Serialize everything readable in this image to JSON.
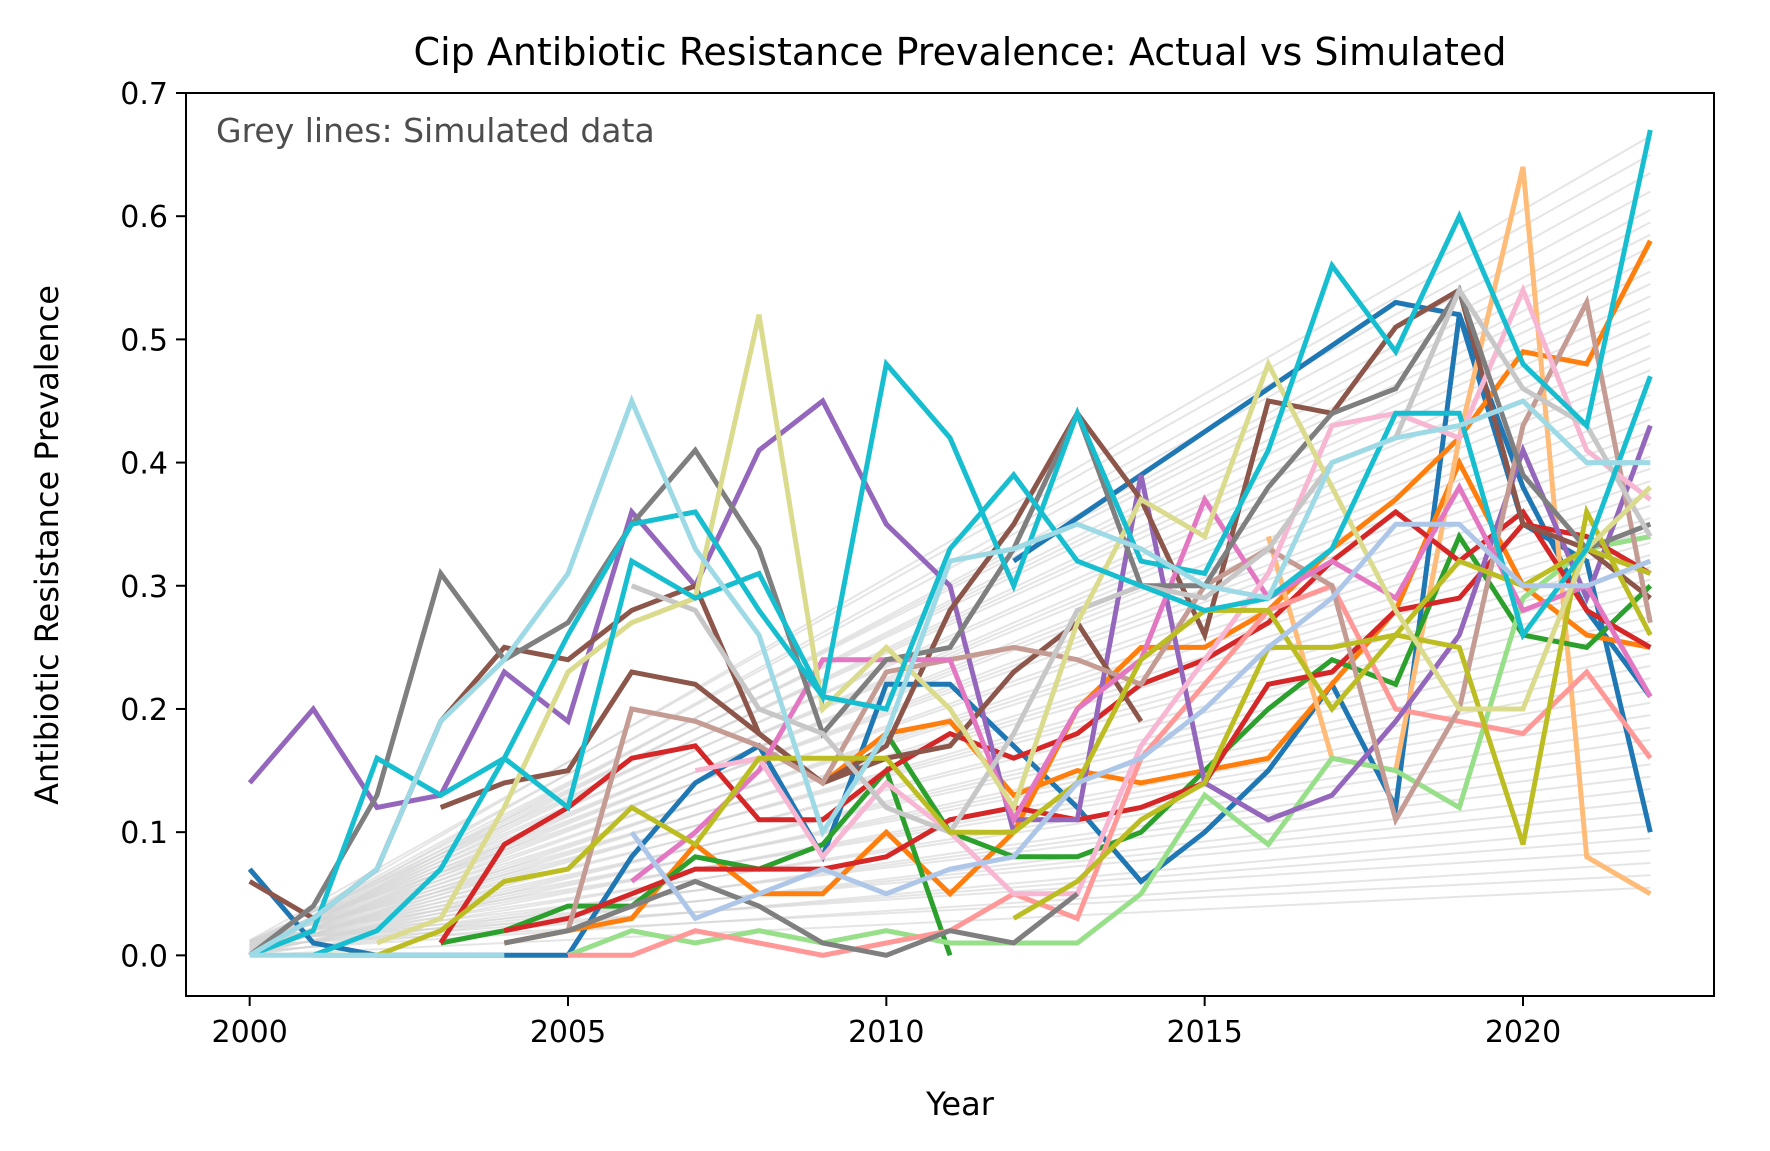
{
  "chart_data": {
    "type": "line",
    "title": "Cip Antibiotic Resistance Prevalence: Actual vs Simulated",
    "xlabel": "Year",
    "ylabel": "Antibiotic Resistance Prevalence",
    "annotation": "Grey lines: Simulated data",
    "xlim": [
      1999,
      2023
    ],
    "ylim": [
      -0.033,
      0.7
    ],
    "xticks": [
      2000,
      2005,
      2010,
      2015,
      2020
    ],
    "yticks": [
      0.0,
      0.1,
      0.2,
      0.3,
      0.4,
      0.5,
      0.6,
      0.7
    ],
    "grid": false,
    "simulated": {
      "color": "#d3d3d3",
      "x_start": 2000,
      "x_end": 2022,
      "start_range": [
        0.0,
        0.012
      ],
      "end_values": [
        0.055,
        0.065,
        0.075,
        0.085,
        0.095,
        0.105,
        0.115,
        0.125,
        0.135,
        0.145,
        0.155,
        0.165,
        0.175,
        0.185,
        0.195,
        0.205,
        0.215,
        0.225,
        0.235,
        0.245,
        0.255,
        0.265,
        0.275,
        0.285,
        0.295,
        0.305,
        0.315,
        0.325,
        0.335,
        0.345,
        0.355,
        0.365,
        0.375,
        0.385,
        0.395,
        0.405,
        0.415,
        0.425,
        0.435,
        0.445,
        0.455,
        0.465,
        0.475,
        0.485,
        0.495,
        0.505,
        0.515,
        0.525,
        0.535,
        0.545,
        0.555,
        0.565,
        0.575,
        0.585,
        0.595,
        0.605,
        0.62,
        0.635,
        0.65,
        0.665
      ]
    },
    "series": [
      {
        "color": "#1f77b4",
        "x": [
          2000,
          2001,
          2002,
          2003,
          2004,
          2005,
          2006,
          2007,
          2008,
          2009,
          2010,
          2011,
          2012,
          2013,
          2014,
          2015,
          2016,
          2017,
          2018,
          2019,
          2020,
          2021,
          2022
        ],
        "y": [
          0.07,
          0.01,
          0.0,
          0.0,
          0.0,
          0.0,
          0.08,
          0.14,
          0.17,
          0.08,
          0.22,
          0.22,
          0.17,
          0.12,
          0.06,
          0.1,
          0.15,
          0.22,
          0.12,
          0.52,
          0.35,
          0.32,
          0.1
        ]
      },
      {
        "color": "#1f77b4",
        "x": [
          2012,
          2018,
          2019,
          2020,
          2021,
          2022
        ],
        "y": [
          0.32,
          0.53,
          0.52,
          0.38,
          0.28,
          0.21
        ]
      },
      {
        "color": "#ff7f0e",
        "x": [
          2004,
          2005,
          2006,
          2007,
          2008,
          2009,
          2010,
          2011,
          2012,
          2013,
          2014,
          2015,
          2016,
          2017,
          2018,
          2019,
          2020,
          2021,
          2022
        ],
        "y": [
          0.01,
          0.02,
          0.03,
          0.09,
          0.05,
          0.05,
          0.1,
          0.05,
          0.1,
          0.2,
          0.25,
          0.25,
          0.28,
          0.33,
          0.37,
          0.42,
          0.49,
          0.48,
          0.58
        ]
      },
      {
        "color": "#ff7f0e",
        "x": [
          2009,
          2010,
          2011,
          2012,
          2013,
          2014,
          2015,
          2016,
          2017,
          2018,
          2019,
          2020,
          2021,
          2022
        ],
        "y": [
          0.14,
          0.18,
          0.19,
          0.13,
          0.15,
          0.14,
          0.15,
          0.16,
          0.22,
          0.28,
          0.4,
          0.3,
          0.26,
          0.25
        ]
      },
      {
        "color": "#ffbb78",
        "x": [
          2016,
          2017,
          2018,
          2019,
          2020,
          2021,
          2022
        ],
        "y": [
          0.34,
          0.16,
          0.15,
          0.42,
          0.64,
          0.08,
          0.05
        ]
      },
      {
        "color": "#2ca02c",
        "x": [
          2003,
          2004,
          2005,
          2006,
          2007,
          2008,
          2009,
          2010,
          2011
        ],
        "y": [
          0.01,
          0.02,
          0.04,
          0.04,
          0.08,
          0.07,
          0.09,
          0.15,
          0.0
        ]
      },
      {
        "color": "#2ca02c",
        "x": [
          2010,
          2011,
          2012,
          2013,
          2014,
          2015,
          2016,
          2017,
          2018,
          2019,
          2020,
          2021,
          2022
        ],
        "y": [
          0.18,
          0.1,
          0.08,
          0.08,
          0.1,
          0.15,
          0.2,
          0.24,
          0.22,
          0.34,
          0.26,
          0.25,
          0.3
        ]
      },
      {
        "color": "#98df8a",
        "x": [
          2005,
          2006,
          2007,
          2008,
          2009,
          2010,
          2011,
          2012,
          2013,
          2014,
          2015,
          2016,
          2017,
          2018,
          2019,
          2020,
          2021,
          2022
        ],
        "y": [
          0.0,
          0.02,
          0.01,
          0.02,
          0.01,
          0.02,
          0.01,
          0.01,
          0.01,
          0.05,
          0.13,
          0.09,
          0.16,
          0.15,
          0.12,
          0.29,
          0.33,
          0.34
        ]
      },
      {
        "color": "#d62728",
        "x": [
          2003,
          2004,
          2005,
          2006,
          2007,
          2008,
          2009,
          2010,
          2011,
          2012,
          2013,
          2014,
          2015,
          2016,
          2017,
          2018,
          2019,
          2020,
          2021,
          2022
        ],
        "y": [
          0.01,
          0.09,
          0.12,
          0.16,
          0.17,
          0.11,
          0.11,
          0.15,
          0.18,
          0.16,
          0.18,
          0.22,
          0.24,
          0.27,
          0.32,
          0.36,
          0.32,
          0.36,
          0.28,
          0.25
        ]
      },
      {
        "color": "#d62728",
        "x": [
          2004,
          2005,
          2006,
          2007,
          2008,
          2009,
          2010,
          2011,
          2012,
          2013,
          2014,
          2015,
          2016,
          2017,
          2018,
          2019,
          2020,
          2021,
          2022
        ],
        "y": [
          0.02,
          0.03,
          0.05,
          0.07,
          0.07,
          0.07,
          0.08,
          0.11,
          0.12,
          0.11,
          0.12,
          0.14,
          0.22,
          0.23,
          0.28,
          0.29,
          0.35,
          0.34,
          0.31
        ]
      },
      {
        "color": "#ff9896",
        "x": [
          2005,
          2006,
          2007,
          2008,
          2009,
          2010,
          2011,
          2012,
          2013,
          2014,
          2015,
          2016,
          2017,
          2018,
          2019,
          2020,
          2021,
          2022
        ],
        "y": [
          0.0,
          0.0,
          0.02,
          0.01,
          0.0,
          0.01,
          0.02,
          0.05,
          0.03,
          0.16,
          0.22,
          0.28,
          0.3,
          0.2,
          0.19,
          0.18,
          0.23,
          0.16
        ]
      },
      {
        "color": "#9467bd",
        "x": [
          2000,
          2001,
          2002,
          2003,
          2004,
          2005,
          2006,
          2007,
          2008,
          2009,
          2010,
          2011,
          2012
        ],
        "y": [
          0.14,
          0.2,
          0.12,
          0.13,
          0.23,
          0.19,
          0.36,
          0.3,
          0.41,
          0.45,
          0.35,
          0.3,
          0.1
        ]
      },
      {
        "color": "#9467bd",
        "x": [
          2012,
          2013,
          2014,
          2015,
          2016,
          2017,
          2018,
          2019,
          2020,
          2021,
          2022
        ],
        "y": [
          0.11,
          0.11,
          0.39,
          0.14,
          0.11,
          0.13,
          0.19,
          0.26,
          0.41,
          0.29,
          0.43
        ]
      },
      {
        "color": "#8c564b",
        "x": [
          2000,
          2001,
          2002,
          2003,
          2004,
          2005,
          2006,
          2007,
          2008,
          2009,
          2010,
          2011,
          2012,
          2013,
          2014,
          2015,
          2016,
          2017,
          2018,
          2019,
          2020,
          2021,
          2022
        ],
        "y": [
          0.06,
          0.03,
          0.07,
          0.19,
          0.25,
          0.24,
          0.28,
          0.3,
          0.18,
          0.14,
          0.17,
          0.28,
          0.35,
          0.44,
          0.37,
          0.26,
          0.45,
          0.44,
          0.51,
          0.54,
          0.35,
          0.33,
          0.29
        ]
      },
      {
        "color": "#8c564b",
        "x": [
          2003,
          2004,
          2005,
          2006,
          2007,
          2008,
          2009,
          2010,
          2011,
          2012,
          2013,
          2014
        ],
        "y": [
          0.12,
          0.14,
          0.15,
          0.23,
          0.22,
          0.18,
          0.14,
          0.16,
          0.17,
          0.23,
          0.27,
          0.19
        ]
      },
      {
        "color": "#c49c94",
        "x": [
          2005,
          2006,
          2007,
          2008,
          2009,
          2010,
          2011,
          2012,
          2013,
          2014,
          2015,
          2016,
          2017,
          2018,
          2019,
          2020,
          2021,
          2022
        ],
        "y": [
          0.02,
          0.2,
          0.19,
          0.17,
          0.14,
          0.23,
          0.24,
          0.25,
          0.24,
          0.22,
          0.3,
          0.33,
          0.3,
          0.11,
          0.2,
          0.43,
          0.53,
          0.27
        ]
      },
      {
        "color": "#e377c2",
        "x": [
          2006,
          2007,
          2008,
          2009,
          2010,
          2011,
          2012,
          2013,
          2014,
          2015,
          2016,
          2017,
          2018,
          2019,
          2020,
          2021,
          2022
        ],
        "y": [
          0.06,
          0.1,
          0.15,
          0.24,
          0.24,
          0.24,
          0.11,
          0.2,
          0.24,
          0.37,
          0.29,
          0.32,
          0.29,
          0.38,
          0.28,
          0.3,
          0.21
        ]
      },
      {
        "color": "#f7b6d2",
        "x": [
          2007,
          2008,
          2009,
          2010,
          2011,
          2012,
          2013,
          2014,
          2015,
          2016,
          2017,
          2018,
          2019,
          2020,
          2021,
          2022
        ],
        "y": [
          0.15,
          0.16,
          0.08,
          0.14,
          0.1,
          0.05,
          0.05,
          0.17,
          0.24,
          0.31,
          0.43,
          0.44,
          0.42,
          0.54,
          0.41,
          0.37
        ]
      },
      {
        "color": "#7f7f7f",
        "x": [
          2000,
          2001,
          2002,
          2003,
          2004,
          2005,
          2006,
          2007,
          2008,
          2009,
          2010,
          2011,
          2012,
          2013,
          2014,
          2015,
          2016,
          2017,
          2018,
          2019,
          2020,
          2021,
          2022
        ],
        "y": [
          0.0,
          0.04,
          0.13,
          0.31,
          0.24,
          0.27,
          0.35,
          0.41,
          0.33,
          0.18,
          0.24,
          0.25,
          0.33,
          0.44,
          0.3,
          0.3,
          0.38,
          0.44,
          0.46,
          0.54,
          0.39,
          0.33,
          0.35
        ]
      },
      {
        "color": "#7f7f7f",
        "x": [
          2004,
          2005,
          2006,
          2007,
          2008,
          2009,
          2010,
          2011,
          2012,
          2013
        ],
        "y": [
          0.01,
          0.02,
          0.04,
          0.06,
          0.04,
          0.01,
          0.0,
          0.02,
          0.01,
          0.05
        ]
      },
      {
        "color": "#c7c7c7",
        "x": [
          2006,
          2007,
          2008,
          2009,
          2010,
          2011,
          2012,
          2013,
          2014,
          2015,
          2016,
          2017,
          2018,
          2019,
          2020,
          2021,
          2022
        ],
        "y": [
          0.3,
          0.28,
          0.2,
          0.18,
          0.12,
          0.1,
          0.18,
          0.28,
          0.3,
          0.29,
          0.33,
          0.4,
          0.42,
          0.54,
          0.46,
          0.43,
          0.34
        ]
      },
      {
        "color": "#bcbd22",
        "x": [
          2001,
          2002,
          2003,
          2004,
          2005,
          2006,
          2007,
          2008,
          2009,
          2010,
          2011,
          2012,
          2013,
          2014,
          2015,
          2016,
          2017,
          2018,
          2019,
          2020,
          2021,
          2022
        ],
        "y": [
          0.0,
          0.0,
          0.02,
          0.06,
          0.07,
          0.12,
          0.09,
          0.16,
          0.16,
          0.16,
          0.1,
          0.1,
          0.14,
          0.24,
          0.28,
          0.28,
          0.2,
          0.26,
          0.25,
          0.09,
          0.36,
          0.26
        ]
      },
      {
        "color": "#bcbd22",
        "x": [
          2012,
          2013,
          2014,
          2015,
          2016,
          2017,
          2018,
          2019,
          2020,
          2021,
          2022
        ],
        "y": [
          0.03,
          0.06,
          0.11,
          0.14,
          0.25,
          0.25,
          0.26,
          0.32,
          0.3,
          0.33,
          0.31
        ]
      },
      {
        "color": "#dbdb8d",
        "x": [
          2002,
          2003,
          2004,
          2005,
          2006,
          2007,
          2008,
          2009,
          2010,
          2011,
          2012,
          2013,
          2014,
          2015,
          2016,
          2017,
          2018,
          2019,
          2020,
          2021,
          2022
        ],
        "y": [
          0.01,
          0.03,
          0.12,
          0.23,
          0.27,
          0.29,
          0.52,
          0.2,
          0.25,
          0.2,
          0.12,
          0.27,
          0.37,
          0.34,
          0.48,
          0.38,
          0.28,
          0.2,
          0.2,
          0.33,
          0.38
        ]
      },
      {
        "color": "#17becf",
        "x": [
          2000,
          2001,
          2002,
          2003,
          2004,
          2005,
          2006,
          2007,
          2008,
          2009,
          2010,
          2011,
          2012,
          2013,
          2014,
          2015,
          2016,
          2017,
          2018,
          2019,
          2020,
          2021,
          2022
        ],
        "y": [
          0.0,
          0.02,
          0.16,
          0.13,
          0.16,
          0.12,
          0.32,
          0.29,
          0.31,
          0.21,
          0.48,
          0.42,
          0.3,
          0.44,
          0.32,
          0.31,
          0.41,
          0.56,
          0.49,
          0.6,
          0.48,
          0.43,
          0.67
        ]
      },
      {
        "color": "#17becf",
        "x": [
          2001,
          2002,
          2003,
          2004,
          2005,
          2006,
          2007,
          2008,
          2009,
          2010,
          2011,
          2012,
          2013,
          2014,
          2015,
          2016,
          2017,
          2018,
          2019,
          2020,
          2021,
          2022
        ],
        "y": [
          0.0,
          0.02,
          0.07,
          0.16,
          0.26,
          0.35,
          0.36,
          0.28,
          0.21,
          0.2,
          0.33,
          0.39,
          0.32,
          0.3,
          0.28,
          0.29,
          0.33,
          0.44,
          0.44,
          0.26,
          0.33,
          0.47
        ]
      },
      {
        "color": "#9edae5",
        "x": [
          2000,
          2001,
          2002,
          2003,
          2004,
          2005,
          2006,
          2007,
          2008,
          2009,
          2010,
          2011,
          2012,
          2013,
          2014,
          2015,
          2016,
          2017,
          2018,
          2019,
          2020,
          2021,
          2022
        ],
        "y": [
          0.0,
          0.03,
          0.07,
          0.19,
          0.24,
          0.31,
          0.45,
          0.33,
          0.26,
          0.1,
          0.18,
          0.32,
          0.33,
          0.35,
          0.33,
          0.3,
          0.29,
          0.4,
          0.42,
          0.43,
          0.45,
          0.4,
          0.4
        ]
      },
      {
        "color": "#9edae5",
        "x": [
          2000,
          2001,
          2002,
          2003,
          2004
        ],
        "y": [
          0.0,
          0.0,
          0.0,
          0.0,
          0.0
        ]
      },
      {
        "color": "#aec7e8",
        "x": [
          2006,
          2007,
          2008,
          2009,
          2010,
          2011,
          2012,
          2013,
          2014,
          2015,
          2016,
          2017,
          2018,
          2019,
          2020,
          2021,
          2022
        ],
        "y": [
          0.1,
          0.03,
          0.05,
          0.07,
          0.05,
          0.07,
          0.08,
          0.14,
          0.16,
          0.2,
          0.25,
          0.29,
          0.35,
          0.35,
          0.3,
          0.3,
          0.32
        ]
      }
    ]
  }
}
